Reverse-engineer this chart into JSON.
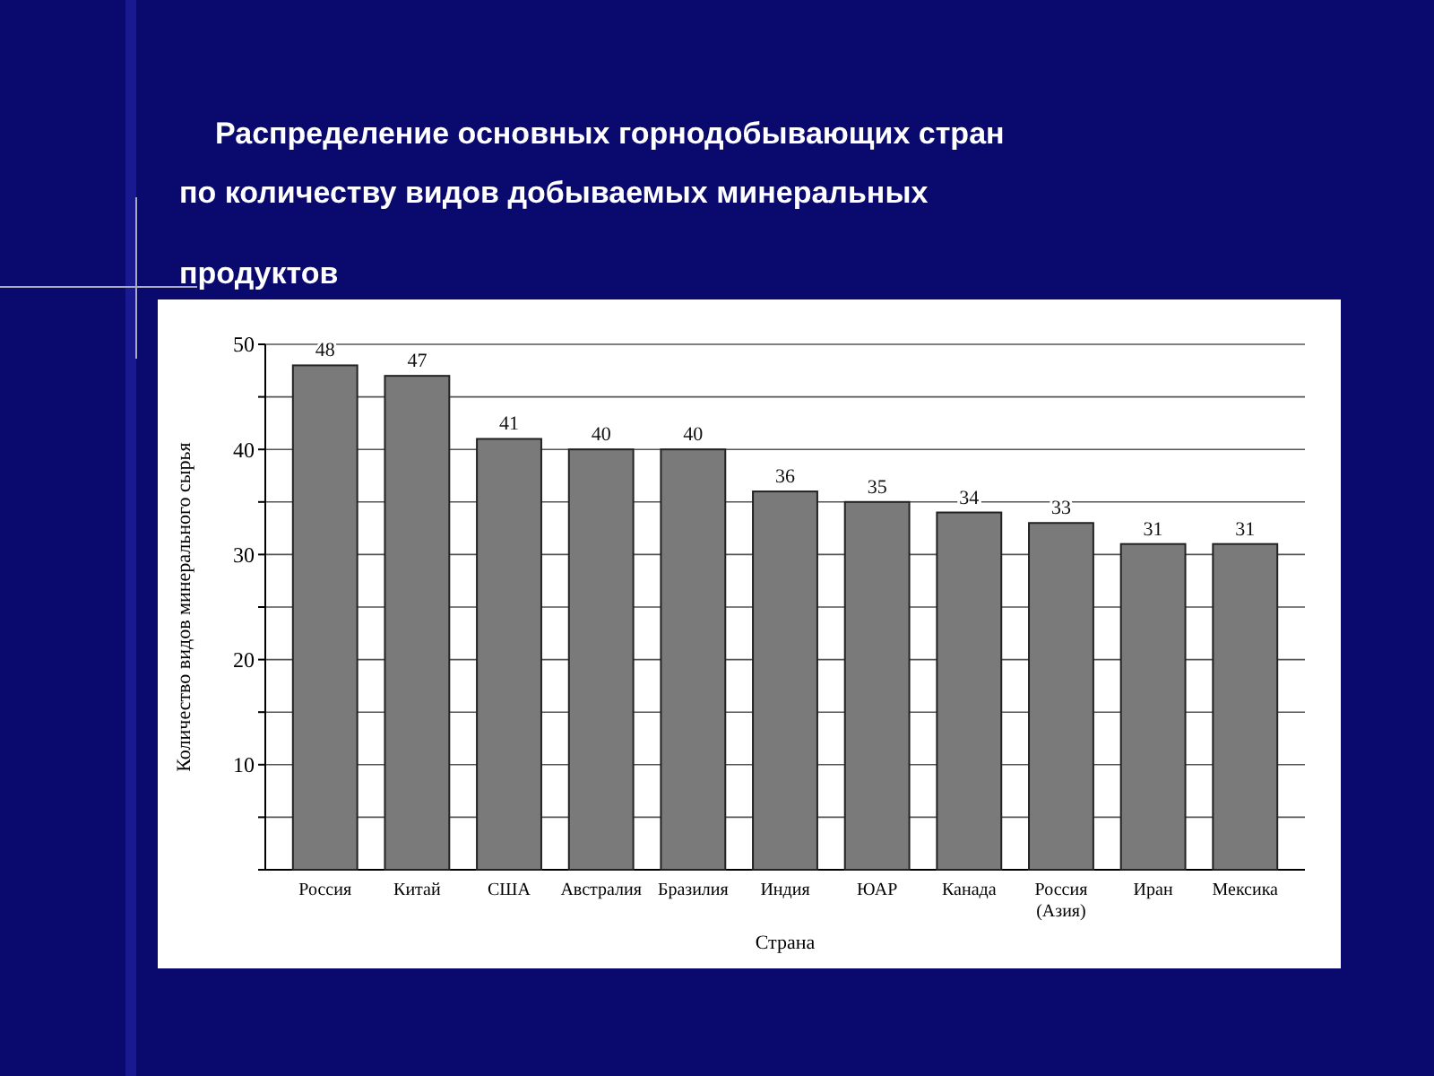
{
  "chart_data": {
    "type": "bar",
    "title": "Распределение основных горнодобывающих стран по количеству видов добываемых минеральных продуктов",
    "categories": [
      "Россия",
      "Китай",
      "США",
      "Австралия",
      "Бразилия",
      "Индия",
      "ЮАР",
      "Канада",
      "Россия (Азия)",
      "Иран",
      "Мексика"
    ],
    "values": [
      48,
      47,
      41,
      40,
      40,
      36,
      35,
      34,
      33,
      31,
      31
    ],
    "color": "#7a7a7a",
    "xlabel": "Страна",
    "ylabel": "Количество видов минерального сырья",
    "ylim": [
      0,
      50
    ],
    "yticks": [
      {
        "value": 0,
        "label": null
      },
      {
        "value": 5,
        "label": null
      },
      10,
      {
        "value": 15,
        "label": null
      },
      20,
      {
        "value": 25,
        "label": null
      },
      30,
      {
        "value": 35,
        "label": null
      },
      40,
      {
        "value": 45,
        "label": null
      },
      50
    ],
    "grid": "y",
    "data_labels": true
  }
}
